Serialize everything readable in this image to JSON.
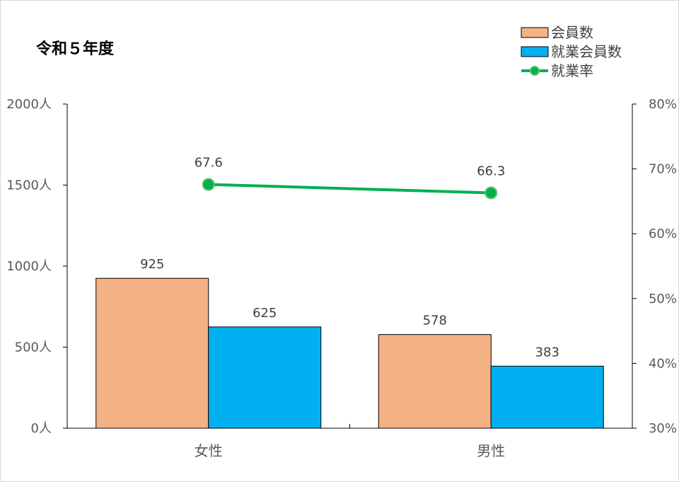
{
  "chart_data": {
    "type": "bar",
    "title": "令和５年度",
    "categories": [
      "女性",
      "男性"
    ],
    "series": [
      {
        "name": "会員数",
        "kind": "bar",
        "axis": "left",
        "color": "#F4B183",
        "values": [
          925,
          578
        ],
        "labels": [
          "925",
          "578"
        ]
      },
      {
        "name": "就業会員数",
        "kind": "bar",
        "axis": "left",
        "color": "#00B0F0",
        "values": [
          625,
          383
        ],
        "labels": [
          "625",
          "383"
        ]
      },
      {
        "name": "就業率",
        "kind": "line",
        "axis": "right",
        "color": "#00B050",
        "values": [
          67.6,
          66.3
        ],
        "labels": [
          "67.6",
          "66.3"
        ]
      }
    ],
    "y_left": {
      "ylim": [
        0,
        2000
      ],
      "ticks": [
        0,
        500,
        1000,
        1500,
        2000
      ],
      "tick_labels": [
        "0人",
        "500人",
        "1000人",
        "1500人",
        "2000人"
      ]
    },
    "y_right": {
      "ylim": [
        30,
        80
      ],
      "ticks": [
        30,
        40,
        50,
        60,
        70,
        80
      ],
      "tick_labels": [
        "30%",
        "40%",
        "50%",
        "60%",
        "70%",
        "80%"
      ]
    },
    "legend_position": "top-right",
    "grid": false
  }
}
